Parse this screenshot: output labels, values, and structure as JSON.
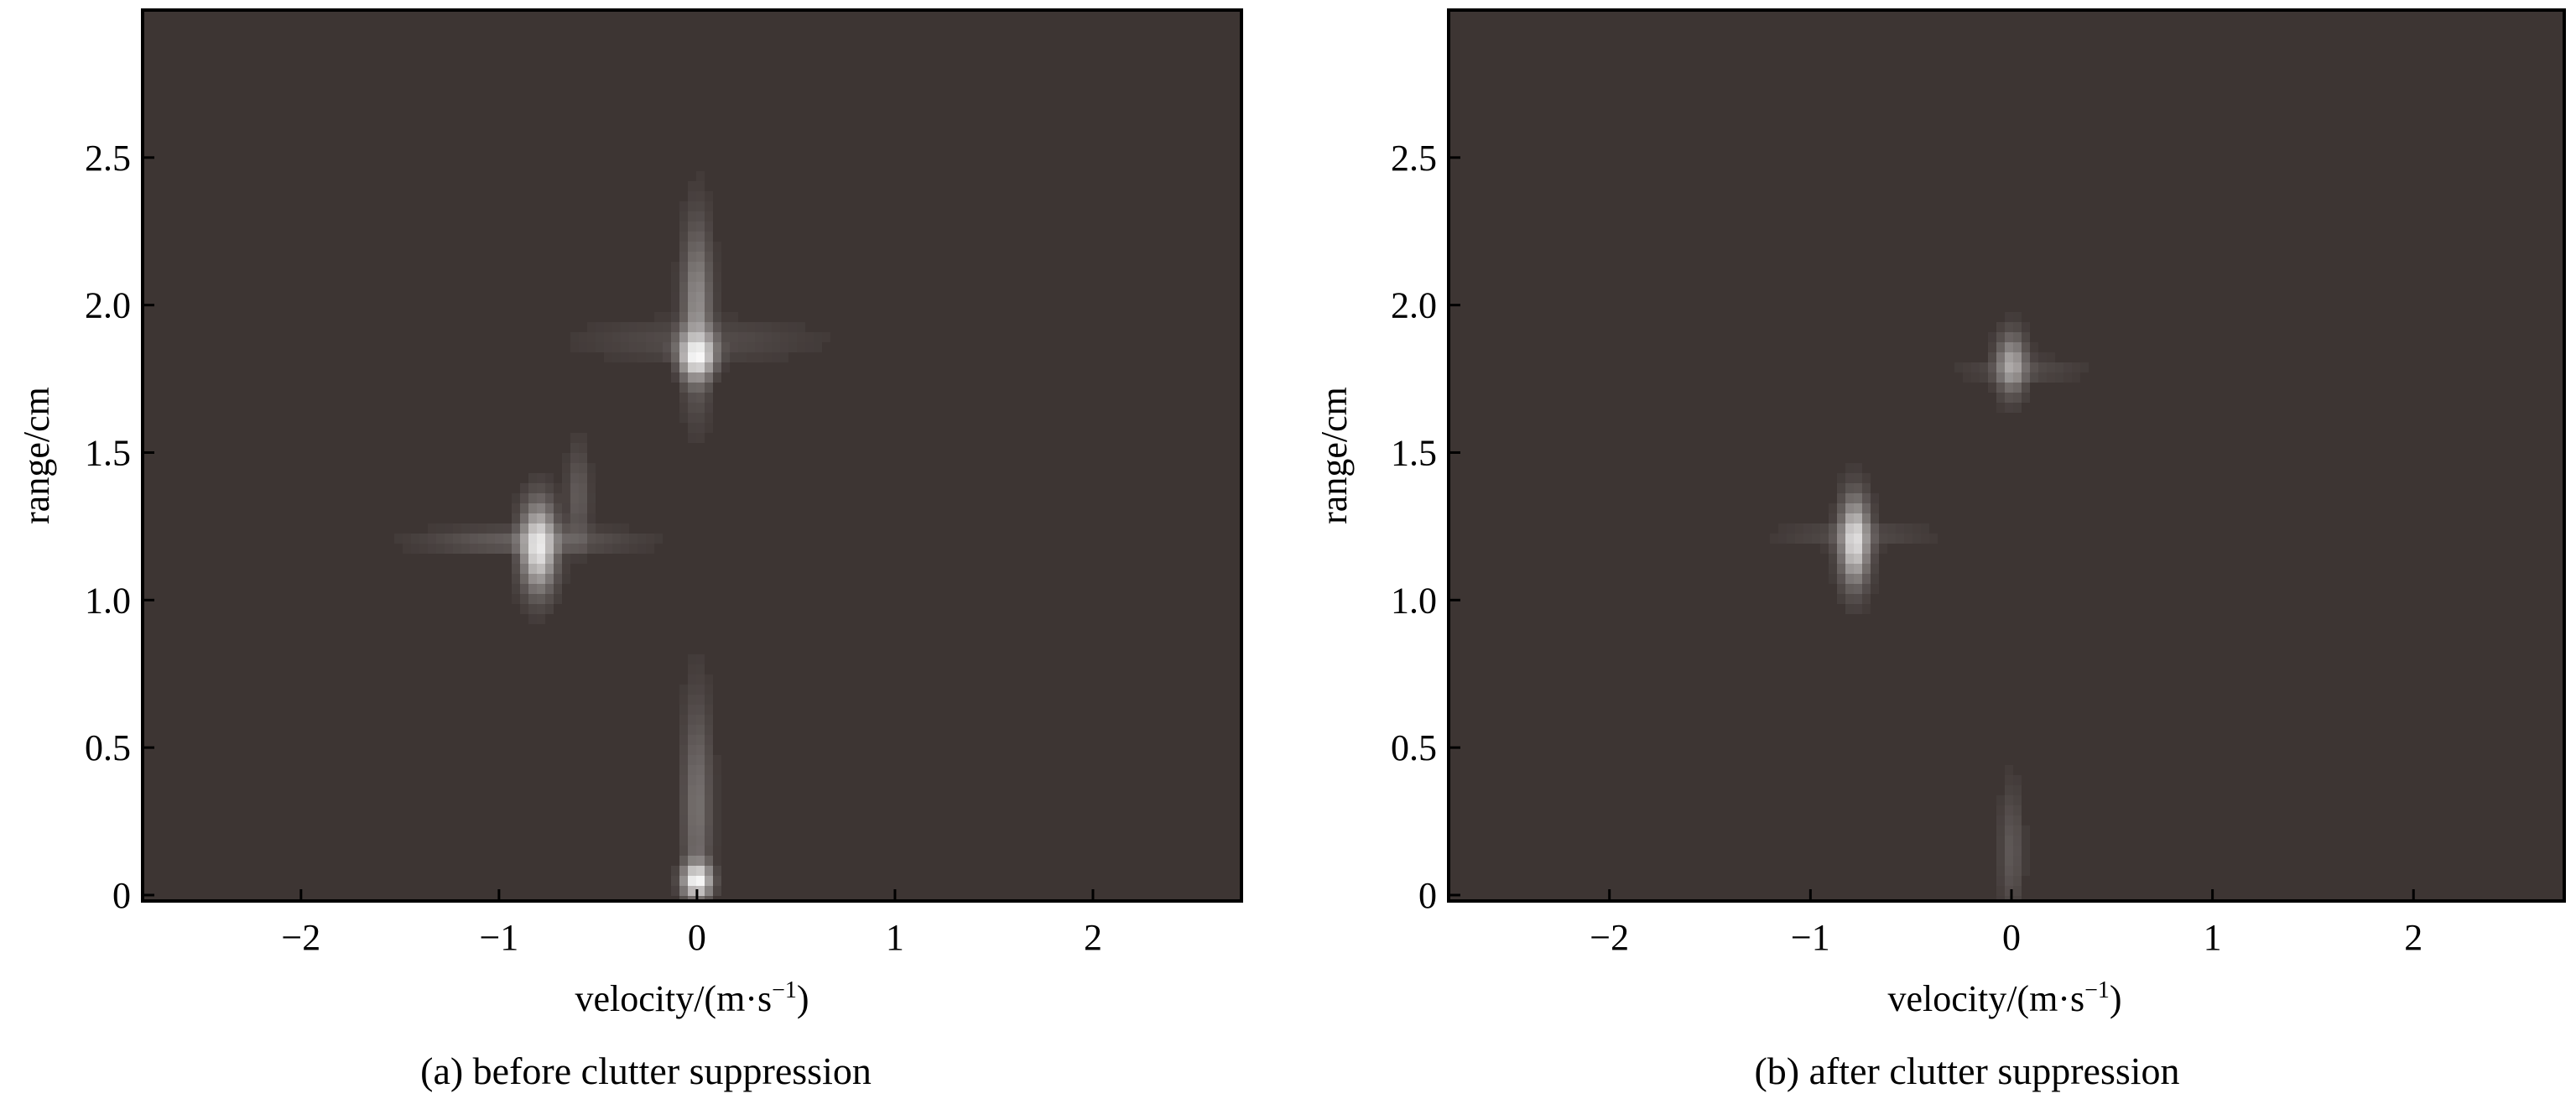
{
  "chart_data": [
    {
      "type": "heatmap",
      "title": "",
      "caption": "(a) before clutter suppression",
      "xlabel": "velocity/(m·s",
      "xlabel_sup": "−1",
      "xlabel_close": ")",
      "ylabel": "range/cm",
      "xlim": [
        -2.8,
        2.75
      ],
      "ylim": [
        -0.02,
        3.0
      ],
      "xticks": [
        -2,
        -1,
        0,
        1,
        2
      ],
      "xtick_labels": [
        "−2",
        "−1",
        "0",
        "1",
        "2"
      ],
      "yticks": [
        0,
        0.5,
        1.0,
        1.5,
        2.0,
        2.5
      ],
      "ytick_labels": [
        "0",
        "0.5",
        "1.0",
        "1.5",
        "2.0",
        "2.5"
      ],
      "grid": false,
      "background_color": "#3d3533",
      "bright_color": "#ffffff",
      "peaks": [
        {
          "label": "stationary clutter (range 0)",
          "x": 0.0,
          "y": 0.05,
          "intensity": 1.0,
          "sx": 0.05,
          "sy": 0.04
        },
        {
          "label": "zero-velocity clutter column",
          "x": 0.0,
          "y": 0.3,
          "intensity": 0.3,
          "sx": 0.05,
          "sy": 0.25
        },
        {
          "label": "target A",
          "x": 0.0,
          "y": 1.83,
          "intensity": 1.0,
          "sx": 0.06,
          "sy": 0.05
        },
        {
          "label": "target A vertical spread",
          "x": 0.0,
          "y": 1.98,
          "intensity": 0.45,
          "sx": 0.05,
          "sy": 0.2
        },
        {
          "label": "target A horizontal spread",
          "x": 0.0,
          "y": 1.88,
          "intensity": 0.12,
          "sx": 0.4,
          "sy": 0.05
        },
        {
          "label": "target B",
          "x": -0.8,
          "y": 1.18,
          "intensity": 0.9,
          "sx": 0.06,
          "sy": 0.1
        },
        {
          "label": "target B horizontal spread",
          "x": -0.85,
          "y": 1.2,
          "intensity": 0.22,
          "sx": 0.35,
          "sy": 0.03
        },
        {
          "label": "target B side lobe",
          "x": -0.6,
          "y": 1.35,
          "intensity": 0.2,
          "sx": 0.04,
          "sy": 0.12
        }
      ]
    },
    {
      "type": "heatmap",
      "title": "",
      "caption": "(b) after clutter suppression",
      "xlabel": "velocity/(m·s",
      "xlabel_sup": "−1",
      "xlabel_close": ")",
      "ylabel": "range/cm",
      "xlim": [
        -2.8,
        2.75
      ],
      "ylim": [
        -0.02,
        3.0
      ],
      "xticks": [
        -2,
        -1,
        0,
        1,
        2
      ],
      "xtick_labels": [
        "−2",
        "−1",
        "0",
        "1",
        "2"
      ],
      "yticks": [
        0,
        0.5,
        1.0,
        1.5,
        2.0,
        2.5
      ],
      "ytick_labels": [
        "0",
        "0.5",
        "1.0",
        "1.5",
        "2.0",
        "2.5"
      ],
      "grid": false,
      "background_color": "#3d3533",
      "bright_color": "#ffffff",
      "peaks": [
        {
          "label": "residual clutter",
          "x": 0.0,
          "y": 0.15,
          "intensity": 0.18,
          "sx": 0.04,
          "sy": 0.15
        },
        {
          "label": "target A",
          "x": 0.0,
          "y": 1.8,
          "intensity": 0.55,
          "sx": 0.05,
          "sy": 0.07
        },
        {
          "label": "target A horizontal spread",
          "x": 0.05,
          "y": 1.78,
          "intensity": 0.12,
          "sx": 0.2,
          "sy": 0.03
        },
        {
          "label": "target B",
          "x": -0.78,
          "y": 1.2,
          "intensity": 0.85,
          "sx": 0.05,
          "sy": 0.1
        },
        {
          "label": "target B horizontal spread",
          "x": -0.78,
          "y": 1.22,
          "intensity": 0.12,
          "sx": 0.25,
          "sy": 0.03
        }
      ]
    }
  ]
}
